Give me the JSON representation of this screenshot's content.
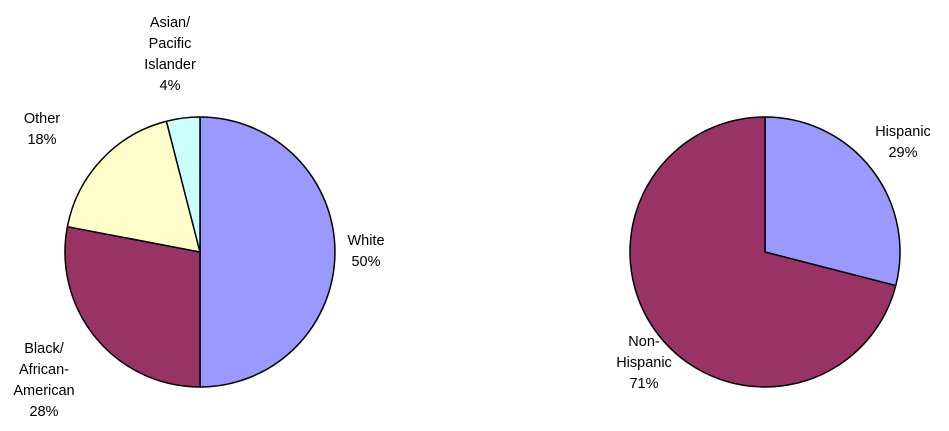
{
  "chart_data": [
    {
      "type": "pie",
      "title": "",
      "slices": [
        {
          "label_lines": [
            "White"
          ],
          "value": 50,
          "value_label": "50%",
          "color": "#9999FF"
        },
        {
          "label_lines": [
            "Black/",
            "African-",
            "American"
          ],
          "value": 28,
          "value_label": "28%",
          "color": "#993366"
        },
        {
          "label_lines": [
            "Other"
          ],
          "value": 18,
          "value_label": "18%",
          "color": "#FFFFCC"
        },
        {
          "label_lines": [
            "Asian/",
            "Pacific",
            "Islander"
          ],
          "value": 4,
          "value_label": "4%",
          "color": "#CCFFFF"
        }
      ]
    },
    {
      "type": "pie",
      "title": "",
      "slices": [
        {
          "label_lines": [
            "Hispanic"
          ],
          "value": 29,
          "value_label": "29%",
          "color": "#9999FF"
        },
        {
          "label_lines": [
            "Non-",
            "Hispanic"
          ],
          "value": 71,
          "value_label": "71%",
          "color": "#993366"
        }
      ]
    }
  ]
}
